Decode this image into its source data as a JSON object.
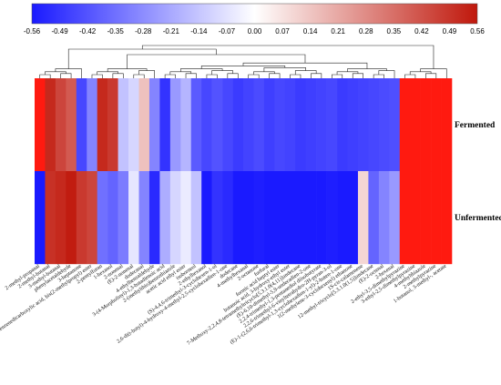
{
  "chart_data": {
    "type": "heatmap",
    "colorbar": {
      "ticks": [
        "-0.56",
        "-0.49",
        "-0.42",
        "-0.35",
        "-0.28",
        "-0.21",
        "-0.14",
        "-0.07",
        "0.00",
        "0.07",
        "0.14",
        "0.21",
        "0.28",
        "0.35",
        "0.42",
        "0.49",
        "0.56"
      ],
      "range": [
        -0.56,
        0.56
      ],
      "colors": {
        "low": "#1a1aff",
        "mid": "#ffffff",
        "high": "#c0180c"
      }
    },
    "rows": [
      "Fermented",
      "Unfermented"
    ],
    "columns": [
      "2-methyl-propanal",
      "2-methyl-butanal",
      "3-methyl-butanal",
      "phenylacetaldehyde",
      "3-heptanone",
      "1,2-benzenedicarboxylic acid, bis(2-methylpropyl) ester",
      "2-pentylfuran",
      "1-hexanol",
      "2-nonenal",
      "(E)-2-nonenal",
      "dodecanal",
      "4-ethylbenzaldehyde",
      "3-(4-Morpholinyl)-1,3-butadienoic acid",
      "2-(methylthio)benzothiazole",
      "acetic acid ethyl ester",
      "isoborneol",
      "2-ethylhexanol",
      "(S)-4,4,6-trimethyl-3-cyclohexen-1-ol",
      "2,6-di(t-butyl)-4-hydroxy-4-methyl-2,5-cyclohexadien-1-one",
      "dodecane",
      "4-methylhexanal",
      "2-octanone",
      "furfural",
      "formic acid heptyl ester",
      "butanoic acid, 3-hydroxy-ethyl ester",
      "7-Methoxy-2,2,4,8-tetramethyltricyclo[5.3.1.0(4,11)]undecane",
      "(E)-6,10-dimethyl-5,9-undecadien-2-one",
      "2,2,4-trimethyl-1,3-pentanediol diisobutyrate",
      "2,2,6-trimethyl-6-vinyltetrahydro-2H-pyran-3-ol",
      "(E)-1-(2,6,6-trimethyl-1,3-cyclohexadien-1-yl)-2-buten-1-one",
      "1(2-methylene-3-cyclohexenyl) ethanone",
      "1S-cis-calamenene",
      "12-methyl-tricyclo[5.3.1.0(1,5)]undecane",
      "(E)-2-octenal",
      "2-hexenal",
      "2-ethyl-3,5-dimethylpyrazine",
      "3-ethyl-2,5-dimethylpyrazine",
      "4-methylthiazole",
      "2-methylpyrazine",
      "1-butanol, 3-methyl-, acetate"
    ],
    "values": [
      [
        0.6,
        0.52,
        0.45,
        0.4,
        -0.45,
        -0.3,
        0.52,
        0.48,
        -0.15,
        -0.1,
        0.15,
        -0.3,
        -0.5,
        -0.25,
        -0.18,
        -0.4,
        -0.45,
        -0.42,
        -0.45,
        -0.48,
        -0.46,
        -0.44,
        -0.47,
        -0.45,
        -0.46,
        -0.48,
        -0.47,
        -0.46,
        -0.45,
        -0.48,
        -0.47,
        -0.46,
        -0.45,
        -0.44,
        -0.43,
        0.66,
        0.66,
        0.66,
        0.66,
        0.66
      ],
      [
        -0.58,
        0.5,
        0.52,
        0.55,
        0.48,
        0.45,
        -0.35,
        -0.38,
        -0.32,
        -0.06,
        -0.3,
        -0.52,
        -0.2,
        -0.1,
        -0.05,
        -0.15,
        -0.62,
        -0.5,
        -0.52,
        -0.56,
        -0.6,
        -0.55,
        -0.56,
        -0.58,
        -0.56,
        -0.57,
        -0.56,
        -0.58,
        -0.55,
        -0.56,
        -0.58,
        0.1,
        -0.38,
        -0.3,
        -0.25,
        0.66,
        0.66,
        0.66,
        0.66,
        0.66
      ]
    ]
  }
}
